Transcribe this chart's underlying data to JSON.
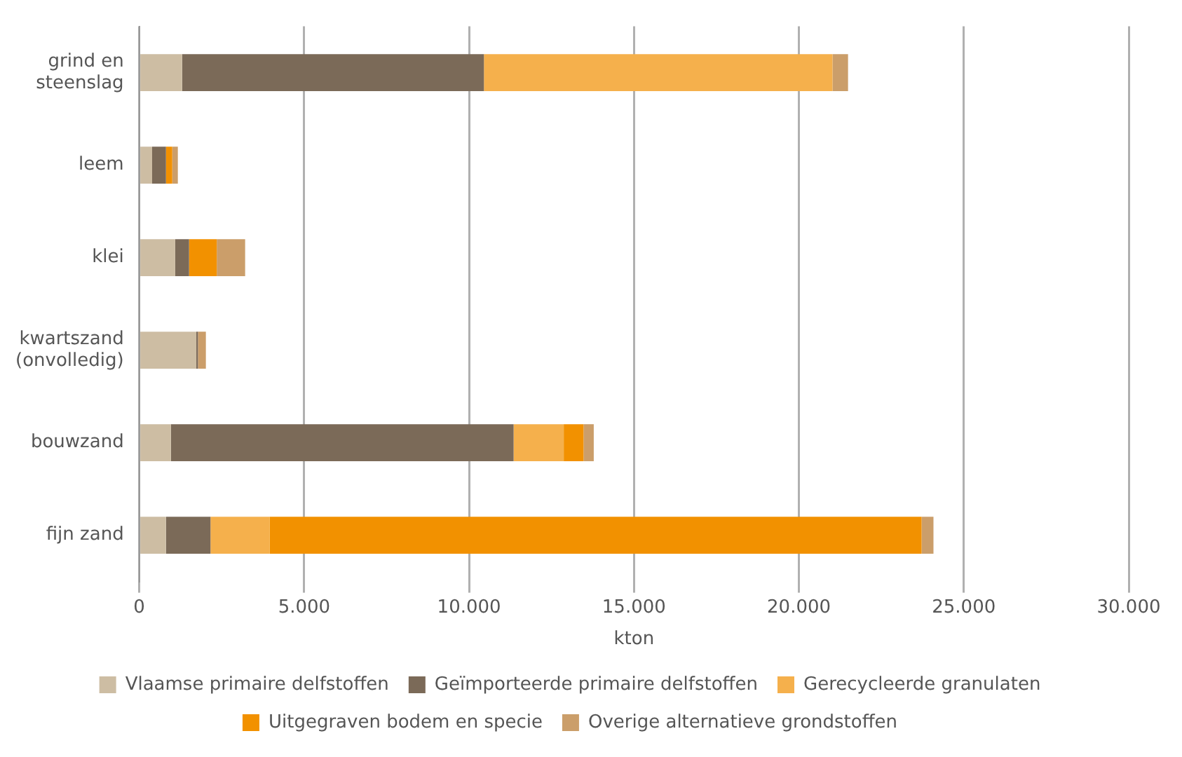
{
  "chart_data": {
    "type": "bar",
    "orientation": "horizontal",
    "stacked": true,
    "xlabel": "kton",
    "categories": [
      "grind en steenslag",
      "leem",
      "klei",
      "kwartszand (onvolledig)",
      "bouwzand",
      "fijn zand"
    ],
    "series": [
      {
        "name": "Vlaamse primaire delfstoffen",
        "color": "#cdbda3",
        "values": [
          1300,
          390,
          1090,
          1730,
          960,
          810
        ]
      },
      {
        "name": "Geïmporteerde primaire delfstoffen",
        "color": "#7b6a58",
        "values": [
          9150,
          420,
          420,
          50,
          10390,
          1350
        ]
      },
      {
        "name": "Gerecycleerde granulaten",
        "color": "#f5b04c",
        "values": [
          10570,
          0,
          0,
          0,
          1520,
          1790
        ]
      },
      {
        "name": "Uitgegraven bodem en specie",
        "color": "#f29100",
        "values": [
          0,
          190,
          840,
          0,
          600,
          19770
        ]
      },
      {
        "name": "Overige alternatieve grondstoffen",
        "color": "#cb9e6a",
        "values": [
          470,
          170,
          860,
          240,
          310,
          360
        ]
      }
    ],
    "xlim": [
      0,
      30000
    ],
    "xticks": [
      0,
      {
        "value": 5000,
        "label": "5.000"
      },
      {
        "value": 10000,
        "label": "10.000"
      },
      {
        "value": 15000,
        "label": "15.000"
      },
      {
        "value": 20000,
        "label": "20.000"
      },
      {
        "value": 25000,
        "label": "25.000"
      },
      {
        "value": 30000,
        "label": "30.000"
      }
    ],
    "grid": "x",
    "legend": "bottom"
  }
}
